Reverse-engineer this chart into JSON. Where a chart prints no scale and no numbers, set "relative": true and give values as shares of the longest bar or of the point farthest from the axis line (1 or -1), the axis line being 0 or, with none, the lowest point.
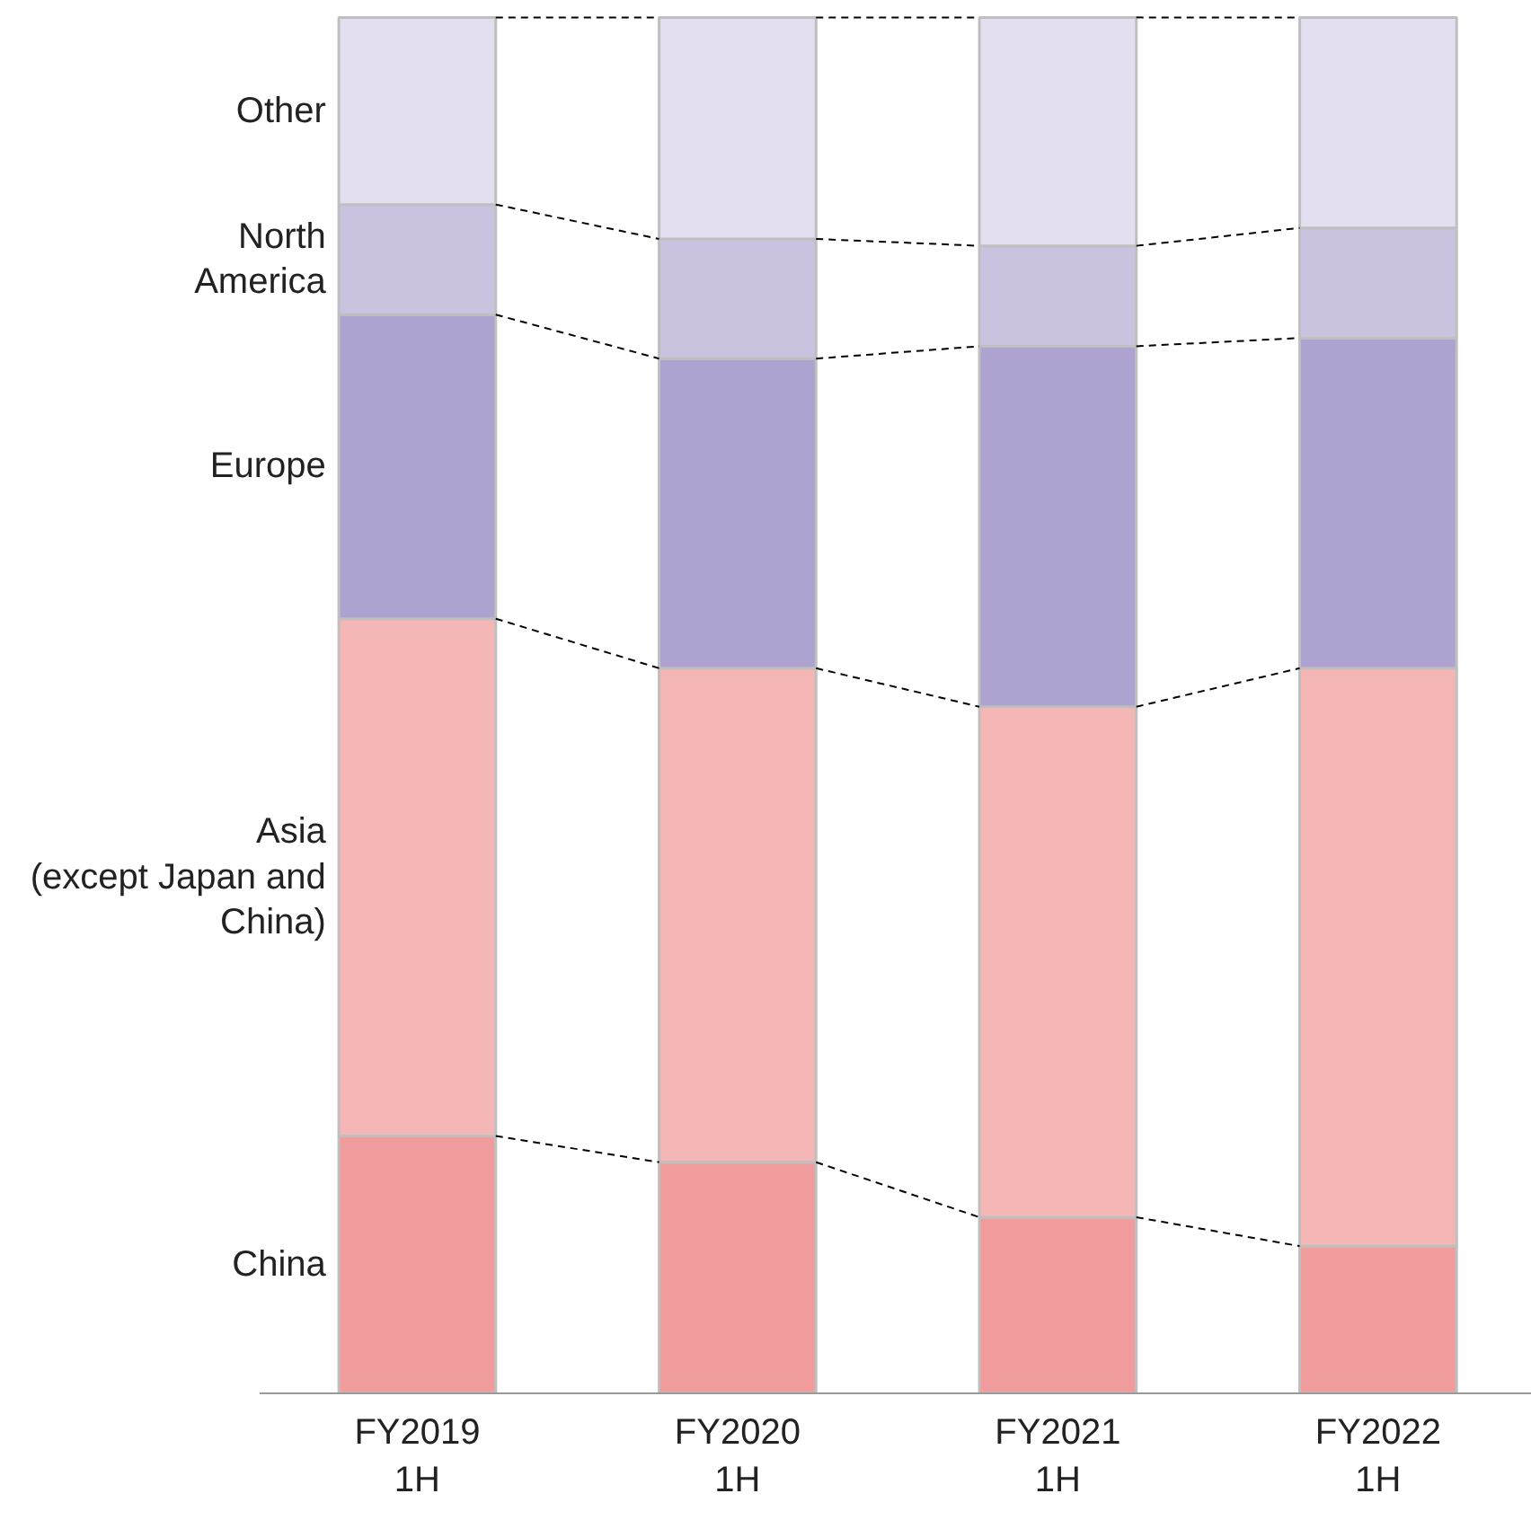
{
  "chart_data": {
    "type": "bar",
    "stacked": true,
    "relative": true,
    "categories": [
      "FY2019\n1H",
      "FY2020\n1H",
      "FY2021\n1H",
      "FY2022\n1H"
    ],
    "series": [
      {
        "name": "China",
        "color": "#f09c9c",
        "values": [
          0.187,
          0.168,
          0.128,
          0.107
        ]
      },
      {
        "name": "Asia\n(except Japan and\nChina)",
        "color": "#f5b6b6",
        "values": [
          0.376,
          0.359,
          0.371,
          0.42
        ]
      },
      {
        "name": "Europe",
        "color": "#ada2d0",
        "values": [
          0.221,
          0.225,
          0.262,
          0.24
        ]
      },
      {
        "name": "North\nAmerica",
        "color": "#c9c3e0",
        "values": [
          0.08,
          0.087,
          0.073,
          0.08
        ]
      },
      {
        "name": "Other",
        "color": "#e3dff0",
        "values": [
          0.136,
          0.161,
          0.166,
          0.153
        ]
      }
    ]
  }
}
